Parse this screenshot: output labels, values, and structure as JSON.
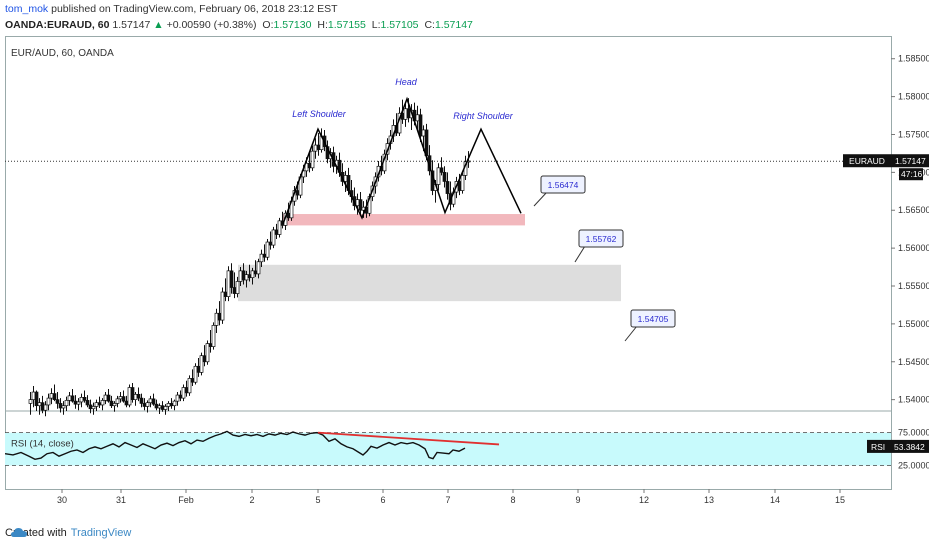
{
  "header": {
    "user": "tom_mok",
    "published": "published on TradingView.com, February 06, 2018 23:12 EST",
    "symbol": "OANDA:EURAUD, 60",
    "last": "1.57147",
    "change": "+0.00590 (+0.38%)",
    "o_label": "O:",
    "o": "1.57130",
    "h_label": "H:",
    "h": "1.57155",
    "l_label": "L:",
    "l": "1.57105",
    "c_label": "C:",
    "c": "1.57147"
  },
  "footer": {
    "created_with": "Created with",
    "brand": "TradingView"
  },
  "colors": {
    "bull": "#ffffff",
    "bear": "#111111",
    "rsi_fill": "#c8fafc",
    "red": "#e03030",
    "pink_zone": "#f2b8bd",
    "grey_zone": "#dddddd",
    "label_text": "#2a2ad0"
  },
  "chart_data": {
    "type": "candlestick",
    "title": "EUR/AUD, 60, OANDA",
    "ylim": [
      1.5385,
      1.588
    ],
    "y_ticks": [
      "1.58500",
      "1.58000",
      "1.57500",
      "1.57000",
      "1.56500",
      "1.56000",
      "1.55500",
      "1.55000",
      "1.54500",
      "1.54000"
    ],
    "x_ticks": [
      "30",
      "31",
      "Feb",
      "2",
      "5",
      "6",
      "7",
      "8",
      "9",
      "12",
      "13",
      "14",
      "15"
    ],
    "current_price_label": "EURAUD",
    "current_price": "1.57147",
    "countdown": "47:16",
    "rsi_label": "RSI",
    "rsi_value": "53.3842",
    "rsi_title": "RSI (14, close)",
    "rsi_levels": [
      "75.0000",
      "25.0000"
    ],
    "candles": [
      [
        25,
        1.5395,
        1.541,
        1.538,
        1.54
      ],
      [
        28,
        1.54,
        1.5418,
        1.539,
        1.541
      ],
      [
        31,
        1.541,
        1.5412,
        1.5385,
        1.5392
      ],
      [
        34,
        1.5392,
        1.5402,
        1.538,
        1.5396
      ],
      [
        37,
        1.5396,
        1.5405,
        1.5382,
        1.5386
      ],
      [
        40,
        1.5386,
        1.5398,
        1.5378,
        1.5393
      ],
      [
        43,
        1.5393,
        1.5408,
        1.5386,
        1.5402
      ],
      [
        46,
        1.5402,
        1.5415,
        1.5394,
        1.5408
      ],
      [
        49,
        1.5408,
        1.542,
        1.5398,
        1.54
      ],
      [
        52,
        1.54,
        1.541,
        1.5388,
        1.5395
      ],
      [
        55,
        1.5395,
        1.5402,
        1.5383,
        1.5389
      ],
      [
        58,
        1.5389,
        1.5398,
        1.538,
        1.5392
      ],
      [
        61,
        1.5392,
        1.5404,
        1.5385,
        1.5399
      ],
      [
        64,
        1.5399,
        1.541,
        1.5392,
        1.5405
      ],
      [
        67,
        1.5405,
        1.5414,
        1.5396,
        1.5398
      ],
      [
        70,
        1.5398,
        1.5406,
        1.5388,
        1.5394
      ],
      [
        73,
        1.5394,
        1.5402,
        1.5386,
        1.5397
      ],
      [
        76,
        1.5397,
        1.5408,
        1.539,
        1.5403
      ],
      [
        79,
        1.5403,
        1.5412,
        1.5396,
        1.5399
      ],
      [
        82,
        1.5399,
        1.5406,
        1.539,
        1.5393
      ],
      [
        85,
        1.5393,
        1.54,
        1.5382,
        1.5388
      ],
      [
        88,
        1.5388,
        1.5396,
        1.538,
        1.5391
      ],
      [
        91,
        1.5391,
        1.54,
        1.5385,
        1.5396
      ],
      [
        94,
        1.5396,
        1.5404,
        1.5389,
        1.5393
      ],
      [
        97,
        1.5393,
        1.5402,
        1.5386,
        1.5399
      ],
      [
        100,
        1.5399,
        1.541,
        1.5394,
        1.5406
      ],
      [
        103,
        1.5406,
        1.5414,
        1.5396,
        1.5398
      ],
      [
        106,
        1.5398,
        1.5405,
        1.5389,
        1.5392
      ],
      [
        109,
        1.5392,
        1.5398,
        1.5384,
        1.5395
      ],
      [
        112,
        1.5395,
        1.5405,
        1.539,
        1.5401
      ],
      [
        115,
        1.5401,
        1.541,
        1.5396,
        1.5404
      ],
      [
        118,
        1.5404,
        1.5412,
        1.5396,
        1.5398
      ],
      [
        121,
        1.5398,
        1.5405,
        1.539,
        1.5393
      ],
      [
        124,
        1.5393,
        1.542,
        1.539,
        1.5416
      ],
      [
        127,
        1.5416,
        1.5422,
        1.5396,
        1.54
      ],
      [
        130,
        1.54,
        1.541,
        1.5392,
        1.5407
      ],
      [
        133,
        1.5407,
        1.5416,
        1.5398,
        1.5402
      ],
      [
        136,
        1.5402,
        1.5408,
        1.539,
        1.5395
      ],
      [
        139,
        1.5395,
        1.5402,
        1.5386,
        1.5391
      ],
      [
        142,
        1.5391,
        1.5399,
        1.5383,
        1.5396
      ],
      [
        145,
        1.5396,
        1.5405,
        1.539,
        1.5401
      ],
      [
        148,
        1.5401,
        1.5408,
        1.5392,
        1.5394
      ],
      [
        151,
        1.5394,
        1.54,
        1.5386,
        1.5389
      ],
      [
        154,
        1.5389,
        1.5395,
        1.5381,
        1.5392
      ],
      [
        157,
        1.5392,
        1.5398,
        1.5384,
        1.5387
      ],
      [
        160,
        1.5387,
        1.5394,
        1.538,
        1.5391
      ],
      [
        163,
        1.5391,
        1.5398,
        1.5385,
        1.5395
      ],
      [
        166,
        1.5395,
        1.5402,
        1.5388,
        1.5392
      ],
      [
        169,
        1.5392,
        1.54,
        1.5386,
        1.5398
      ],
      [
        172,
        1.5398,
        1.541,
        1.5392,
        1.5406
      ],
      [
        175,
        1.5406,
        1.5412,
        1.5398,
        1.5402
      ],
      [
        178,
        1.5402,
        1.542,
        1.5398,
        1.5416
      ],
      [
        181,
        1.5416,
        1.5425,
        1.5404,
        1.5409
      ],
      [
        184,
        1.5409,
        1.5432,
        1.5405,
        1.5428
      ],
      [
        187,
        1.5428,
        1.544,
        1.5418,
        1.5423
      ],
      [
        190,
        1.5423,
        1.5448,
        1.542,
        1.5444
      ],
      [
        193,
        1.5444,
        1.5455,
        1.543,
        1.5436
      ],
      [
        196,
        1.5436,
        1.5462,
        1.5432,
        1.5458
      ],
      [
        199,
        1.5458,
        1.5472,
        1.5444,
        1.545
      ],
      [
        202,
        1.545,
        1.5478,
        1.5446,
        1.5474
      ],
      [
        205,
        1.5474,
        1.5492,
        1.5462,
        1.547
      ],
      [
        208,
        1.547,
        1.5502,
        1.5466,
        1.5498
      ],
      [
        211,
        1.5498,
        1.552,
        1.5488,
        1.5514
      ],
      [
        214,
        1.5514,
        1.553,
        1.5498,
        1.5505
      ],
      [
        217,
        1.5505,
        1.5548,
        1.55,
        1.5542
      ],
      [
        220,
        1.5542,
        1.556,
        1.553,
        1.5536
      ],
      [
        223,
        1.5536,
        1.5576,
        1.553,
        1.557
      ],
      [
        226,
        1.557,
        1.558,
        1.554,
        1.5548
      ],
      [
        229,
        1.5548,
        1.5568,
        1.5534,
        1.554
      ],
      [
        232,
        1.554,
        1.5562,
        1.5535,
        1.5556
      ],
      [
        235,
        1.5556,
        1.5575,
        1.555,
        1.557
      ],
      [
        238,
        1.557,
        1.558,
        1.5552,
        1.5558
      ],
      [
        241,
        1.5558,
        1.557,
        1.5548,
        1.5565
      ],
      [
        244,
        1.5565,
        1.5578,
        1.5556,
        1.5561
      ],
      [
        247,
        1.5561,
        1.5574,
        1.5552,
        1.557
      ],
      [
        250,
        1.557,
        1.5584,
        1.5562,
        1.5566
      ],
      [
        253,
        1.5566,
        1.5586,
        1.556,
        1.5582
      ],
      [
        256,
        1.5582,
        1.5598,
        1.5575,
        1.5592
      ],
      [
        259,
        1.5592,
        1.5605,
        1.5582,
        1.5588
      ],
      [
        262,
        1.5588,
        1.5612,
        1.5584,
        1.5608
      ],
      [
        265,
        1.5608,
        1.5622,
        1.5598,
        1.5604
      ],
      [
        268,
        1.5604,
        1.5628,
        1.56,
        1.5624
      ],
      [
        271,
        1.5624,
        1.5632,
        1.5612,
        1.5618
      ],
      [
        274,
        1.5618,
        1.564,
        1.5614,
        1.5636
      ],
      [
        277,
        1.5636,
        1.5648,
        1.5626,
        1.563
      ],
      [
        280,
        1.563,
        1.565,
        1.5624,
        1.5646
      ],
      [
        283,
        1.5646,
        1.566,
        1.5636,
        1.564
      ],
      [
        286,
        1.564,
        1.5668,
        1.5636,
        1.5662
      ],
      [
        289,
        1.5662,
        1.5682,
        1.5656,
        1.5676
      ],
      [
        292,
        1.5676,
        1.5688,
        1.5664,
        1.567
      ],
      [
        295,
        1.567,
        1.5698,
        1.5666,
        1.5694
      ],
      [
        298,
        1.5694,
        1.571,
        1.5686,
        1.5702
      ],
      [
        301,
        1.5702,
        1.572,
        1.5694,
        1.5712
      ],
      [
        304,
        1.5712,
        1.5728,
        1.57,
        1.5706
      ],
      [
        307,
        1.5706,
        1.5735,
        1.5702,
        1.5728
      ],
      [
        310,
        1.5728,
        1.5745,
        1.5718,
        1.5736
      ],
      [
        313,
        1.5736,
        1.5752,
        1.5722,
        1.573
      ],
      [
        316,
        1.573,
        1.5758,
        1.5726,
        1.5748
      ],
      [
        319,
        1.5748,
        1.5756,
        1.5728,
        1.5734
      ],
      [
        322,
        1.5734,
        1.5742,
        1.5712,
        1.5718
      ],
      [
        325,
        1.5718,
        1.5732,
        1.5706,
        1.5726
      ],
      [
        328,
        1.5726,
        1.5734,
        1.57,
        1.5708
      ],
      [
        331,
        1.5708,
        1.5722,
        1.5698,
        1.5716
      ],
      [
        334,
        1.5716,
        1.5726,
        1.5694,
        1.57
      ],
      [
        337,
        1.57,
        1.5712,
        1.5682,
        1.5688
      ],
      [
        340,
        1.5688,
        1.5702,
        1.5674,
        1.5696
      ],
      [
        343,
        1.5696,
        1.5706,
        1.567,
        1.5676
      ],
      [
        346,
        1.5676,
        1.569,
        1.566,
        1.5668
      ],
      [
        349,
        1.5668,
        1.568,
        1.565,
        1.5656
      ],
      [
        352,
        1.5656,
        1.5672,
        1.5644,
        1.5664
      ],
      [
        355,
        1.5664,
        1.5674,
        1.5644,
        1.565
      ],
      [
        358,
        1.565,
        1.5662,
        1.564,
        1.5654
      ],
      [
        361,
        1.5654,
        1.5664,
        1.564,
        1.5646
      ],
      [
        364,
        1.5646,
        1.5672,
        1.5642,
        1.5668
      ],
      [
        367,
        1.5668,
        1.5688,
        1.5662,
        1.5682
      ],
      [
        370,
        1.5682,
        1.57,
        1.5672,
        1.5694
      ],
      [
        373,
        1.5694,
        1.5715,
        1.5688,
        1.5708
      ],
      [
        376,
        1.5708,
        1.5722,
        1.5696,
        1.5702
      ],
      [
        379,
        1.5702,
        1.573,
        1.5698,
        1.5724
      ],
      [
        382,
        1.5724,
        1.5745,
        1.5716,
        1.5738
      ],
      [
        385,
        1.5738,
        1.5756,
        1.573,
        1.5748
      ],
      [
        388,
        1.5748,
        1.577,
        1.574,
        1.5762
      ],
      [
        391,
        1.5762,
        1.5778,
        1.5748,
        1.5752
      ],
      [
        394,
        1.5752,
        1.5786,
        1.5748,
        1.5778
      ],
      [
        397,
        1.5778,
        1.5796,
        1.5764,
        1.577
      ],
      [
        400,
        1.577,
        1.5792,
        1.576,
        1.5784
      ],
      [
        403,
        1.5784,
        1.5798,
        1.5766,
        1.5772
      ],
      [
        406,
        1.5772,
        1.579,
        1.5756,
        1.5782
      ],
      [
        409,
        1.5782,
        1.5792,
        1.5762,
        1.5768
      ],
      [
        412,
        1.5768,
        1.5788,
        1.5754,
        1.5776
      ],
      [
        415,
        1.5776,
        1.5784,
        1.574,
        1.5748
      ],
      [
        418,
        1.5748,
        1.5762,
        1.5728,
        1.5756
      ],
      [
        421,
        1.5756,
        1.5764,
        1.5716,
        1.5722
      ],
      [
        424,
        1.5722,
        1.5736,
        1.5696,
        1.5702
      ],
      [
        427,
        1.5702,
        1.5716,
        1.567,
        1.5676
      ],
      [
        430,
        1.5676,
        1.569,
        1.566,
        1.5684
      ],
      [
        433,
        1.5684,
        1.5712,
        1.5676,
        1.5706
      ],
      [
        436,
        1.5706,
        1.572,
        1.5696,
        1.57
      ],
      [
        439,
        1.57,
        1.5708,
        1.568,
        1.5688
      ],
      [
        442,
        1.5688,
        1.57,
        1.5664,
        1.5672
      ],
      [
        445,
        1.5672,
        1.5688,
        1.565,
        1.5658
      ],
      [
        448,
        1.5658,
        1.568,
        1.5654,
        1.5674
      ],
      [
        451,
        1.5674,
        1.5694,
        1.5666,
        1.5688
      ],
      [
        454,
        1.5688,
        1.5698,
        1.567,
        1.5676
      ],
      [
        457,
        1.5676,
        1.5702,
        1.5672,
        1.5696
      ],
      [
        460,
        1.5696,
        1.5722,
        1.569,
        1.5714
      ],
      [
        463,
        1.5714,
        1.5728,
        1.5706,
        1.5715
      ]
    ],
    "rsi": [
      [
        0,
        44
      ],
      [
        8,
        42
      ],
      [
        16,
        46
      ],
      [
        24,
        40
      ],
      [
        30,
        35
      ],
      [
        36,
        37
      ],
      [
        42,
        44
      ],
      [
        48,
        46
      ],
      [
        54,
        40
      ],
      [
        60,
        44
      ],
      [
        66,
        48
      ],
      [
        72,
        50
      ],
      [
        78,
        46
      ],
      [
        84,
        52
      ],
      [
        90,
        55
      ],
      [
        96,
        52
      ],
      [
        102,
        56
      ],
      [
        108,
        60
      ],
      [
        114,
        55
      ],
      [
        120,
        62
      ],
      [
        126,
        58
      ],
      [
        132,
        54
      ],
      [
        138,
        60
      ],
      [
        144,
        56
      ],
      [
        150,
        52
      ],
      [
        156,
        58
      ],
      [
        162,
        61
      ],
      [
        168,
        57
      ],
      [
        174,
        62
      ],
      [
        180,
        65
      ],
      [
        186,
        60
      ],
      [
        192,
        66
      ],
      [
        198,
        64
      ],
      [
        204,
        69
      ],
      [
        210,
        73
      ],
      [
        216,
        76
      ],
      [
        222,
        80
      ],
      [
        228,
        74
      ],
      [
        234,
        72
      ],
      [
        240,
        75
      ],
      [
        246,
        73
      ],
      [
        252,
        75
      ],
      [
        258,
        72
      ],
      [
        264,
        76
      ],
      [
        270,
        74
      ],
      [
        276,
        77
      ],
      [
        282,
        75
      ],
      [
        288,
        79
      ],
      [
        294,
        76
      ],
      [
        300,
        74
      ],
      [
        306,
        77
      ],
      [
        312,
        78
      ],
      [
        318,
        74
      ],
      [
        324,
        64
      ],
      [
        330,
        68
      ],
      [
        336,
        60
      ],
      [
        342,
        55
      ],
      [
        348,
        52
      ],
      [
        354,
        46
      ],
      [
        358,
        42
      ],
      [
        362,
        48
      ],
      [
        366,
        56
      ],
      [
        372,
        53
      ],
      [
        378,
        58
      ],
      [
        384,
        62
      ],
      [
        390,
        58
      ],
      [
        396,
        62
      ],
      [
        402,
        60
      ],
      [
        408,
        62
      ],
      [
        414,
        58
      ],
      [
        420,
        52
      ],
      [
        424,
        38
      ],
      [
        428,
        36
      ],
      [
        432,
        46
      ],
      [
        438,
        45
      ],
      [
        444,
        44
      ],
      [
        448,
        50
      ],
      [
        454,
        48
      ],
      [
        460,
        53
      ]
    ],
    "annotations": {
      "head": "Head",
      "left_shoulder": "Left Shoulder",
      "right_shoulder": "Right Shoulder",
      "target1": "1.56474",
      "target2": "1.55762",
      "target3": "1.54705"
    }
  }
}
